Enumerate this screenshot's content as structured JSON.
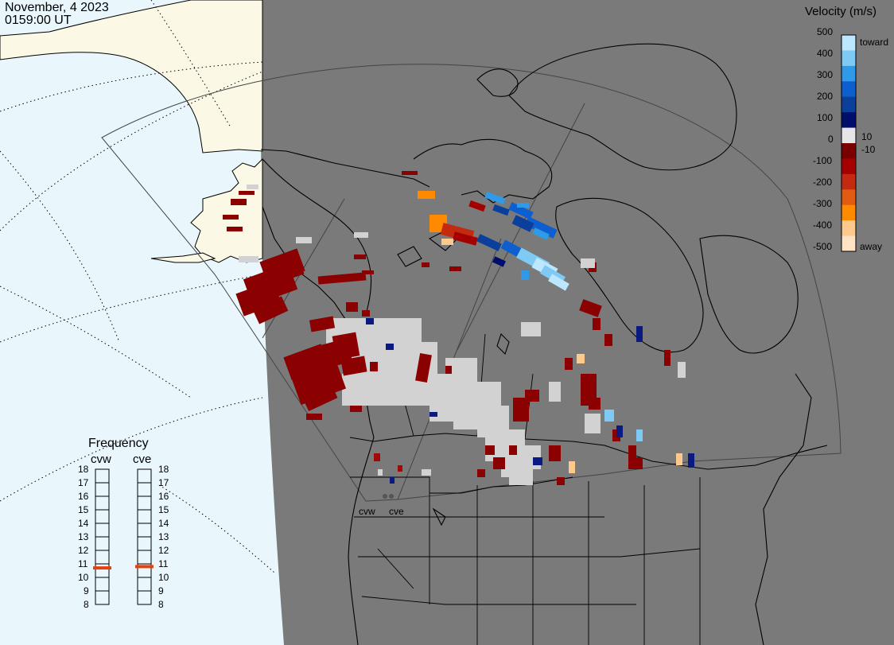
{
  "header": {
    "date": "November, 4 2023",
    "time": "0159:00 UT"
  },
  "velocity_scale": {
    "title": "Velocity (m/s)",
    "ticks": [
      "500",
      "400",
      "300",
      "200",
      "100",
      "0",
      "-100",
      "-200",
      "-300",
      "-400",
      "-500"
    ],
    "inner_labels": [
      "10",
      "-10"
    ],
    "toward_label": "toward",
    "away_label": "away",
    "colors": [
      "#bde6ff",
      "#7fcaf5",
      "#2f9be8",
      "#0d5fd0",
      "#0b3f9c",
      "#000e6b",
      "#e6e6e6",
      "#7a0000",
      "#a50000",
      "#c42a10",
      "#e25b10",
      "#ff8a00",
      "#ffc88c",
      "#ffe3c4"
    ]
  },
  "frequency_panel": {
    "title": "Frequency",
    "radars": [
      "cvw",
      "cve"
    ],
    "ticks": [
      "18",
      "17",
      "16",
      "15",
      "14",
      "13",
      "12",
      "11",
      "10",
      "9",
      "8"
    ],
    "selected_mhz": {
      "cvw": 10.7,
      "cve": 10.8
    },
    "marker_color": "#e8400c"
  },
  "sites": [
    "cvw",
    "cve"
  ],
  "colors": {
    "night_land": "#7a7a7a",
    "day_land": "#fbf9e6",
    "day_ocean": "#e9f7fd",
    "ground_scatter": "#d2d2d2"
  }
}
